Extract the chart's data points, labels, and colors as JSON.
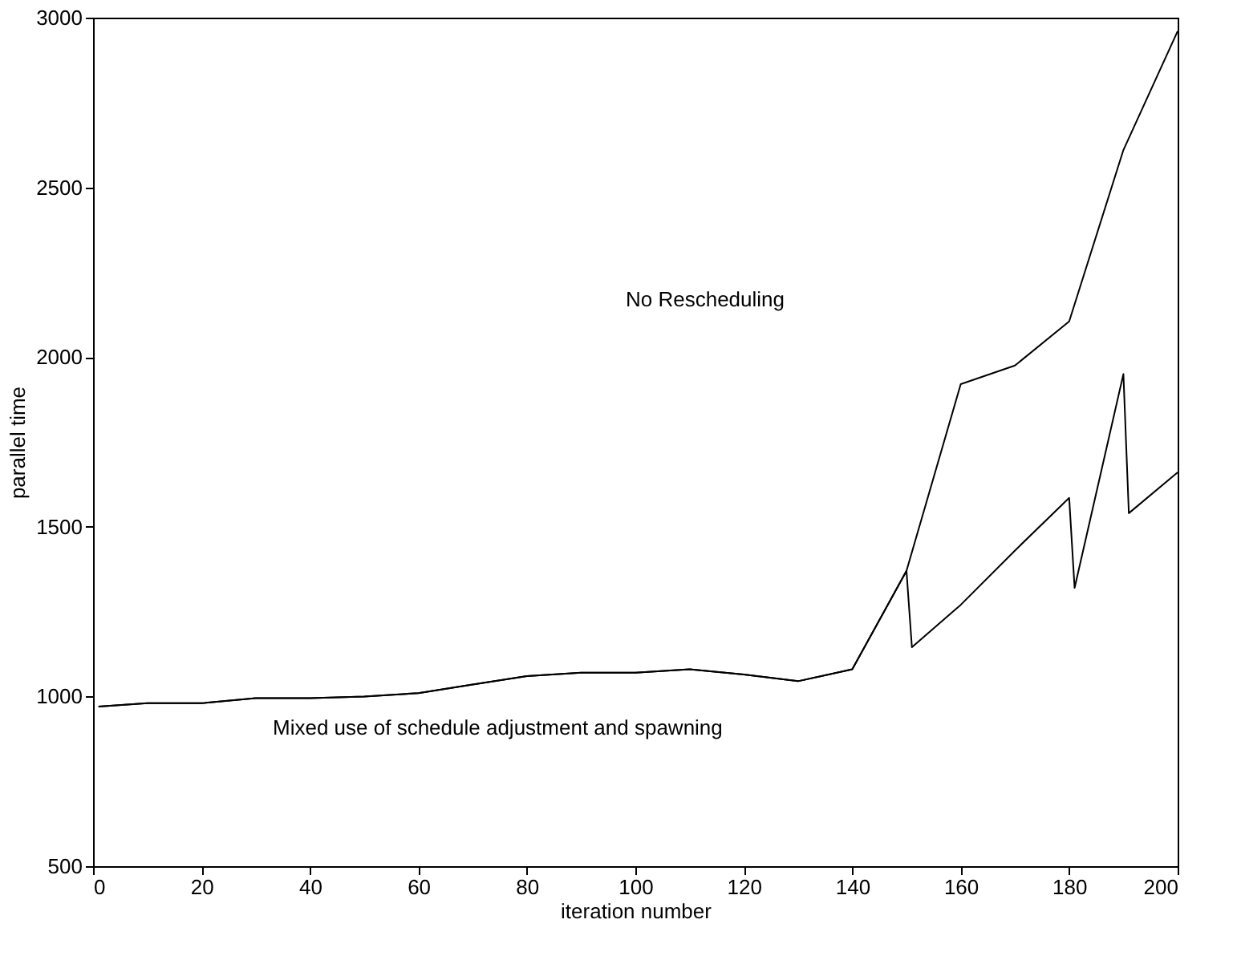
{
  "chart_data": {
    "type": "line",
    "xlabel": "iteration number",
    "ylabel": "parallel time",
    "xlim": [
      0,
      200
    ],
    "xticks": [
      0,
      20,
      40,
      60,
      80,
      100,
      120,
      140,
      160,
      180,
      200
    ],
    "ylim": [
      500,
      3000
    ],
    "yticks": [
      500,
      1000,
      1500,
      2000,
      2500,
      3000
    ],
    "grid": false,
    "legend": false,
    "marker": "none",
    "line_style": "solid",
    "series": [
      {
        "color": "#000000",
        "x": [
          1,
          10,
          20,
          30,
          40,
          50,
          60,
          70,
          80,
          90,
          100,
          110,
          120,
          130,
          140,
          150,
          160,
          170,
          180,
          190,
          200
        ],
        "values": [
          970,
          980,
          980,
          995,
          995,
          1000,
          1010,
          1035,
          1060,
          1070,
          1070,
          1080,
          1065,
          1045,
          1080,
          1370,
          1920,
          1975,
          2105,
          2610,
          2960
        ]
      },
      {
        "color": "#000000",
        "x": [
          1,
          10,
          20,
          30,
          40,
          50,
          60,
          70,
          80,
          90,
          100,
          110,
          120,
          130,
          140,
          150,
          151,
          160,
          170,
          180,
          181,
          190,
          191,
          200
        ],
        "values": [
          970,
          980,
          980,
          995,
          995,
          1000,
          1010,
          1035,
          1060,
          1070,
          1070,
          1080,
          1065,
          1045,
          1080,
          1370,
          1145,
          1270,
          1430,
          1585,
          1320,
          1950,
          1540,
          1660
        ]
      }
    ],
    "annotations": [
      "No Rescheduling",
      "Mixed use of schedule adjustment and spawning"
    ]
  }
}
